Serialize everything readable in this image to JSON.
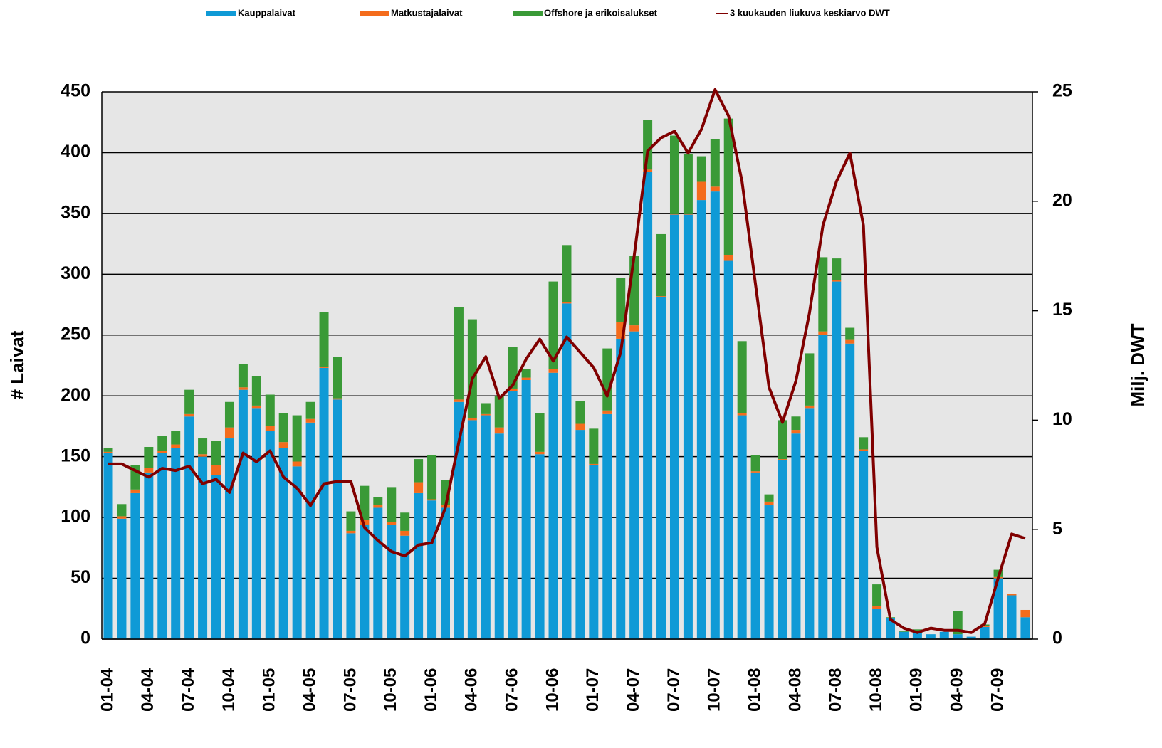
{
  "chart_data": {
    "type": "bar",
    "categories": [
      "01-04",
      null,
      null,
      "04-04",
      null,
      null,
      "07-04",
      null,
      null,
      "10-04",
      null,
      null,
      "01-05",
      null,
      null,
      "04-05",
      null,
      null,
      "07-05",
      null,
      null,
      "10-05",
      null,
      null,
      "01-06",
      null,
      null,
      "04-06",
      null,
      null,
      "07-06",
      null,
      null,
      "10-06",
      null,
      null,
      "01-07",
      null,
      null,
      "04-07",
      null,
      null,
      "07-07",
      null,
      null,
      "10-07",
      null,
      null,
      "01-08",
      null,
      null,
      "04-08",
      null,
      null,
      "07-08",
      null,
      null,
      "10-08",
      null,
      null,
      "01-09",
      null,
      null,
      "04-09",
      null,
      null,
      "07-09",
      null,
      null
    ],
    "series": [
      {
        "name": "Kauppalaivat",
        "color": "#0f9ad6",
        "values": [
          153,
          99,
          120,
          137,
          153,
          157,
          183,
          150,
          135,
          165,
          205,
          190,
          171,
          157,
          142,
          178,
          223,
          197,
          87,
          94,
          108,
          94,
          85,
          120,
          114,
          108,
          195,
          180,
          184,
          169,
          204,
          213,
          152,
          219,
          276,
          172,
          143,
          185,
          247,
          253,
          384,
          281,
          349,
          349,
          361,
          368,
          311,
          184,
          137,
          110,
          147,
          169,
          190,
          250,
          294,
          243,
          155,
          25,
          17,
          6,
          5,
          4,
          6,
          4,
          2,
          10,
          50,
          36,
          18
        ]
      },
      {
        "name": "Matkustajalaivat",
        "color": "#f46c1c",
        "values": [
          1,
          2,
          3,
          4,
          2,
          3,
          2,
          2,
          8,
          9,
          2,
          2,
          4,
          5,
          4,
          3,
          1,
          1,
          2,
          4,
          2,
          2,
          4,
          9,
          1,
          2,
          2,
          2,
          1,
          5,
          2,
          2,
          2,
          3,
          1,
          5,
          1,
          3,
          14,
          5,
          2,
          1,
          1,
          1,
          15,
          4,
          5,
          2,
          1,
          3,
          1,
          3,
          2,
          3,
          1,
          3,
          1,
          2,
          0,
          0,
          0,
          0,
          0,
          0,
          0,
          1,
          1,
          1,
          6
        ]
      },
      {
        "name": "Offshore ja erikoisalukset",
        "color": "#3a9a37",
        "values": [
          3,
          10,
          20,
          17,
          12,
          11,
          20,
          13,
          20,
          21,
          19,
          24,
          26,
          24,
          38,
          14,
          45,
          34,
          16,
          28,
          7,
          29,
          15,
          19,
          36,
          21,
          76,
          81,
          9,
          26,
          34,
          7,
          32,
          72,
          47,
          19,
          29,
          51,
          36,
          57,
          41,
          51,
          64,
          49,
          21,
          39,
          112,
          59,
          13,
          6,
          32,
          11,
          43,
          61,
          18,
          10,
          10,
          18,
          1,
          1,
          3,
          0,
          0,
          19,
          0,
          1,
          6,
          0,
          0
        ]
      },
      {
        "name": "3 kuukauden liukuva keskiarvo DWT",
        "color": "#800000",
        "type": "line",
        "axis": "y2",
        "values": [
          8.0,
          8.0,
          7.7,
          7.4,
          7.8,
          7.7,
          7.9,
          7.1,
          7.3,
          6.7,
          8.5,
          8.1,
          8.6,
          7.4,
          6.9,
          6.1,
          7.1,
          7.2,
          7.2,
          5.1,
          4.5,
          4.0,
          3.8,
          4.3,
          4.4,
          6.0,
          9.0,
          11.9,
          12.9,
          11.0,
          11.6,
          12.8,
          13.7,
          12.7,
          13.8,
          13.1,
          12.4,
          11.1,
          13.1,
          17.5,
          22.3,
          22.9,
          23.2,
          22.2,
          23.3,
          25.1,
          23.9,
          20.9,
          16.2,
          11.5,
          9.9,
          11.8,
          14.9,
          18.9,
          20.9,
          22.2,
          18.9,
          4.2,
          0.9,
          0.5,
          0.3,
          0.5,
          0.4,
          0.4,
          0.3,
          0.7,
          2.8,
          4.8,
          4.6
        ]
      }
    ],
    "ylabel": "# Laivat",
    "y2label": "Milj. DWT",
    "ylim": [
      0,
      450
    ],
    "yticks": [
      0,
      50,
      100,
      150,
      200,
      250,
      300,
      350,
      400,
      450
    ],
    "y2lim": [
      0,
      25
    ],
    "y2ticks": [
      0,
      5,
      10,
      15,
      20,
      25
    ],
    "grid": true,
    "stacked": true,
    "legend": "top"
  }
}
